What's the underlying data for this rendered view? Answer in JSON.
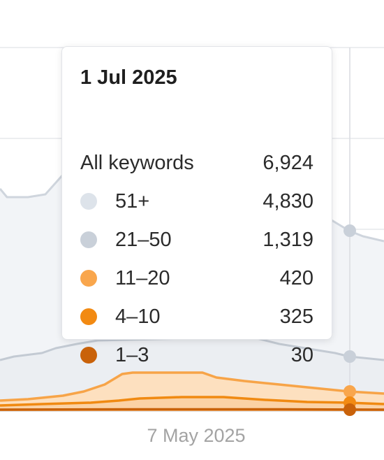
{
  "chart_data": {
    "type": "area",
    "stacked": true,
    "x_tick_labels": [
      "7 May 2025"
    ],
    "grid": "horizontal",
    "series": [
      {
        "name": "51+",
        "color": "#dde3ea"
      },
      {
        "name": "21–50",
        "color": "#c9d0d9"
      },
      {
        "name": "11–20",
        "color": "#f9a64c"
      },
      {
        "name": "4–10",
        "color": "#f28a12"
      },
      {
        "name": "1–3",
        "color": "#c9620a"
      }
    ],
    "tooltip": {
      "date": "1 Jul 2025",
      "total_label": "All keywords",
      "total_value": "6,924",
      "rows": [
        {
          "label": "51+",
          "value": "4,830",
          "color": "#dde3ea"
        },
        {
          "label": "21–50",
          "value": "1,319",
          "color": "#c9d0d9"
        },
        {
          "label": "11–20",
          "value": "420",
          "color": "#f9a64c"
        },
        {
          "label": "4–10",
          "value": "325",
          "color": "#f28a12"
        },
        {
          "label": "1–3",
          "value": "30",
          "color": "#c9620a"
        }
      ]
    }
  }
}
